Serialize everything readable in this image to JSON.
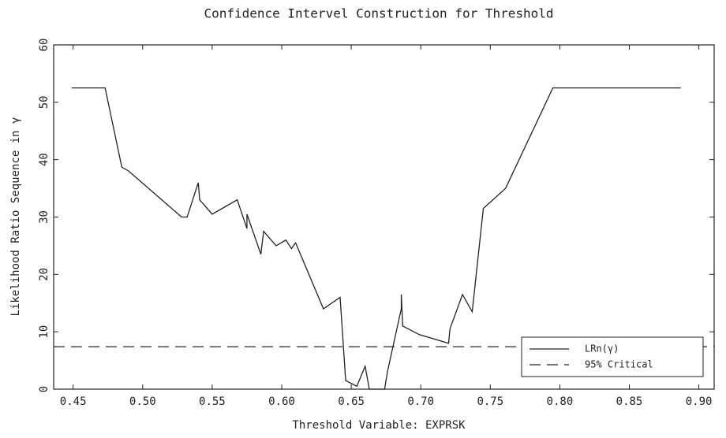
{
  "chart_data": {
    "type": "line",
    "title": "Confidence Intervel Construction for Threshold",
    "x_label": "Threshold Variable: EXPRSK",
    "y_label": "Likelihood Ratio Sequence in γ",
    "xlim": [
      0.436,
      0.911
    ],
    "ylim": [
      0,
      60
    ],
    "xticks": [
      {
        "value": 0.45,
        "label": "0.45"
      },
      {
        "value": 0.5,
        "label": "0.50"
      },
      {
        "value": 0.55,
        "label": "0.55"
      },
      {
        "value": 0.6,
        "label": "0.60"
      },
      {
        "value": 0.65,
        "label": "0.65"
      },
      {
        "value": 0.7,
        "label": "0.70"
      },
      {
        "value": 0.75,
        "label": "0.75"
      },
      {
        "value": 0.8,
        "label": "0.80"
      },
      {
        "value": 0.85,
        "label": "0.85"
      },
      {
        "value": 0.9,
        "label": "0.90"
      }
    ],
    "yticks": [
      0,
      10,
      20,
      30,
      40,
      50,
      60
    ],
    "legend": "lower right",
    "series": [
      {
        "name": "LRn(γ)",
        "color": "#222222",
        "style": "solid",
        "x": [
          0.449,
          0.473,
          0.485,
          0.49,
          0.528,
          0.532,
          0.54,
          0.541,
          0.55,
          0.568,
          0.575,
          0.575,
          0.585,
          0.587,
          0.596,
          0.603,
          0.607,
          0.61,
          0.63,
          0.642,
          0.646,
          0.654,
          0.66,
          0.663,
          0.674,
          0.676,
          0.686,
          0.686,
          0.687,
          0.699,
          0.72,
          0.721,
          0.73,
          0.737,
          0.745,
          0.761,
          0.795,
          0.887
        ],
        "values": [
          52.5,
          52.5,
          38.7,
          38,
          30,
          30,
          36,
          33,
          30.5,
          33,
          28,
          30.5,
          23.5,
          27.5,
          25,
          26,
          24.5,
          25.5,
          14,
          16,
          1.5,
          0.5,
          4,
          0,
          0,
          3,
          14,
          16.5,
          11,
          9.5,
          8,
          10.5,
          16.5,
          13.5,
          31.5,
          35,
          52.5,
          52.5
        ]
      },
      {
        "name": "95% Critical",
        "color": "#222222",
        "style": "dashed",
        "x": [
          0.436,
          0.911
        ],
        "values": [
          7.4,
          7.4
        ]
      }
    ]
  }
}
